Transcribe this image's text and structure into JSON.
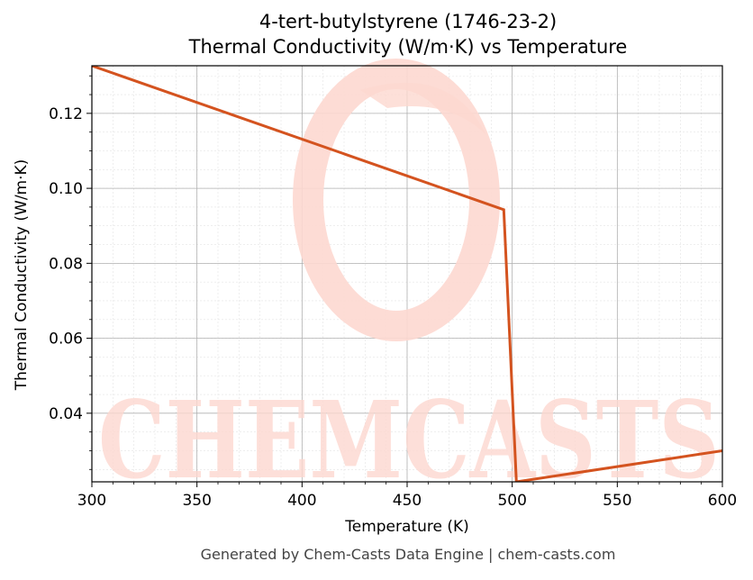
{
  "footer": "Generated by Chem-Casts Data Engine | chem-casts.com",
  "watermark": {
    "text": "CHEMCASTS",
    "color": "#fdd8d0"
  },
  "chart_data": {
    "type": "line",
    "title": "4-tert-butylstyrene (1746-23-2)",
    "subtitle": "Thermal Conductivity (W/m·K) vs Temperature",
    "xlabel": "Temperature (K)",
    "ylabel": "Thermal Conductivity (W/m·K)",
    "xlim": [
      300,
      600
    ],
    "ylim": [
      0.0217,
      0.1327
    ],
    "xticks": [
      300,
      350,
      400,
      450,
      500,
      550,
      600
    ],
    "yticks": [
      0.04,
      0.06,
      0.08,
      0.1,
      0.12
    ],
    "grid": true,
    "line_color": "#d4531f",
    "series": [
      {
        "x": [
          300,
          496,
          502,
          600
        ],
        "y": [
          0.1327,
          0.0943,
          0.0217,
          0.03
        ]
      }
    ]
  }
}
